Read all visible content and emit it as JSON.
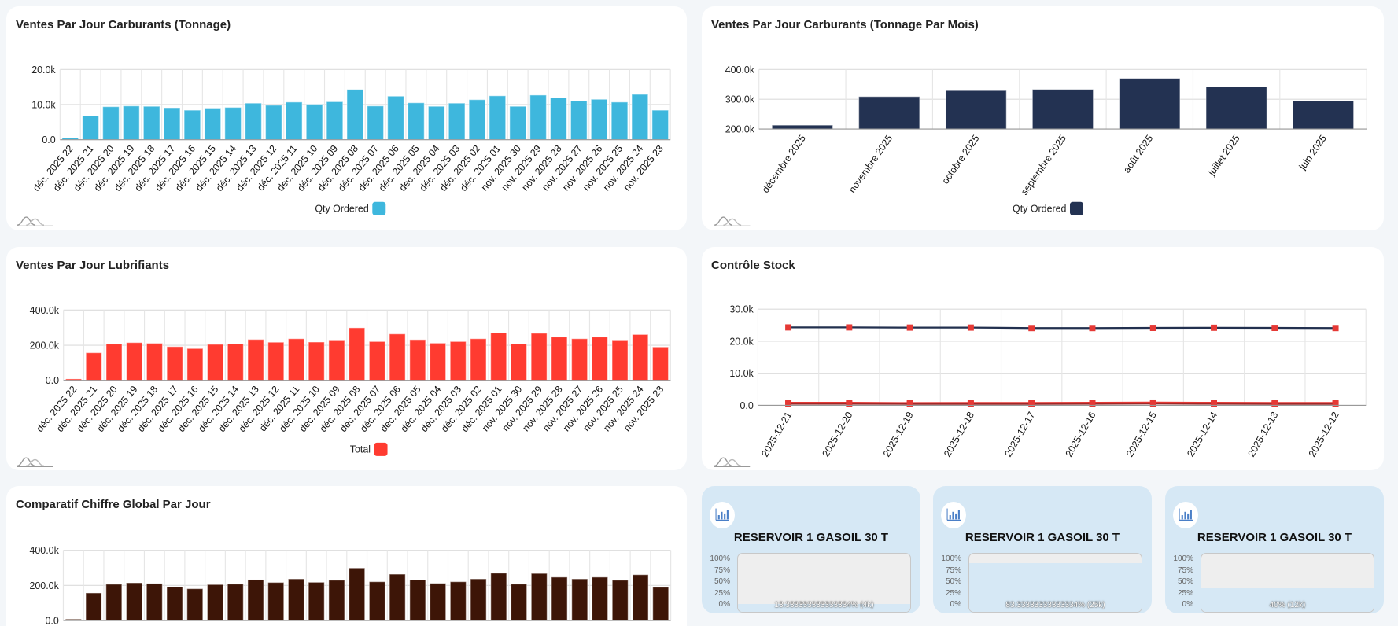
{
  "chart_data": [
    {
      "type": "bar",
      "title": "Ventes Par Jour Carburants (Tonnage)",
      "categories": [
        "déc. 2025 22",
        "déc. 2025 21",
        "déc. 2025 20",
        "déc. 2025 19",
        "déc. 2025 18",
        "déc. 2025 17",
        "déc. 2025 16",
        "déc. 2025 15",
        "déc. 2025 14",
        "déc. 2025 13",
        "déc. 2025 12",
        "déc. 2025 11",
        "déc. 2025 10",
        "déc. 2025 09",
        "déc. 2025 08",
        "déc. 2025 07",
        "déc. 2025 06",
        "déc. 2025 05",
        "déc. 2025 04",
        "déc. 2025 03",
        "déc. 2025 02",
        "déc. 2025 01",
        "nov. 2025 30",
        "nov. 2025 29",
        "nov. 2025 28",
        "nov. 2025 27",
        "nov. 2025 26",
        "nov. 2025 25",
        "nov. 2025 24",
        "nov. 2025 23"
      ],
      "series": [
        {
          "name": "Qty Ordered",
          "color": "#3eb7dd",
          "values": [
            500,
            6800,
            9400,
            9600,
            9500,
            9100,
            8400,
            9000,
            9200,
            10400,
            9800,
            10700,
            10100,
            10800,
            14300,
            9600,
            12400,
            10500,
            9500,
            10400,
            11400,
            12500,
            9500,
            12700,
            12000,
            11100,
            11500,
            10700,
            12900,
            8400
          ]
        }
      ],
      "ylim": [
        0,
        20000
      ],
      "yticks": [
        0,
        10000,
        20000
      ],
      "ytick_labels": [
        "0.0",
        "10.0k",
        "20.0k"
      ],
      "legend": "Qty Ordered",
      "grid": true
    },
    {
      "type": "bar",
      "title": "Ventes Par Jour Carburants (Tonnage Par Mois)",
      "categories": [
        "décembre 2025",
        "novembre 2025",
        "octobre 2025",
        "septembre 2025",
        "août 2025",
        "juillet 2025",
        "juin 2025"
      ],
      "series": [
        {
          "name": "Qty Ordered",
          "color": "#233252",
          "values": [
            213000,
            309000,
            329000,
            333000,
            370000,
            342000,
            295000
          ]
        }
      ],
      "ylim": [
        200000,
        400000
      ],
      "yticks": [
        200000,
        300000,
        400000
      ],
      "ytick_labels": [
        "200.0k",
        "300.0k",
        "400.0k"
      ],
      "legend": "Qty Ordered",
      "grid": true
    },
    {
      "type": "bar",
      "title": "Ventes Par Jour Lubrifiants",
      "categories": [
        "déc. 2025 22",
        "déc. 2025 21",
        "déc. 2025 20",
        "déc. 2025 19",
        "déc. 2025 18",
        "déc. 2025 17",
        "déc. 2025 16",
        "déc. 2025 15",
        "déc. 2025 14",
        "déc. 2025 13",
        "déc. 2025 12",
        "déc. 2025 11",
        "déc. 2025 10",
        "déc. 2025 09",
        "déc. 2025 08",
        "déc. 2025 07",
        "déc. 2025 06",
        "déc. 2025 05",
        "déc. 2025 04",
        "déc. 2025 03",
        "déc. 2025 02",
        "déc. 2025 01",
        "nov. 2025 30",
        "nov. 2025 29",
        "nov. 2025 28",
        "nov. 2025 27",
        "nov. 2025 26",
        "nov. 2025 25",
        "nov. 2025 24",
        "nov. 2025 23"
      ],
      "series": [
        {
          "name": "Total",
          "color": "#ff3b30",
          "values": [
            8000,
            157000,
            207000,
            215000,
            211000,
            192000,
            181000,
            205000,
            208000,
            233000,
            217000,
            237000,
            218000,
            230000,
            299000,
            221000,
            264000,
            232000,
            212000,
            221000,
            237000,
            270000,
            208000,
            268000,
            247000,
            237000,
            247000,
            230000,
            261000,
            190000
          ]
        }
      ],
      "ylim": [
        0,
        400000
      ],
      "yticks": [
        0,
        200000,
        400000
      ],
      "ytick_labels": [
        "0.0",
        "200.0k",
        "400.0k"
      ],
      "legend": "Total",
      "grid": true
    },
    {
      "type": "line",
      "title": "Contrôle Stock",
      "categories": [
        "2025-12-21",
        "2025-12-20",
        "2025-12-19",
        "2025-12-18",
        "2025-12-17",
        "2025-12-16",
        "2025-12-15",
        "2025-12-14",
        "2025-12-13",
        "2025-12-12"
      ],
      "series": [
        {
          "color": "#22304f",
          "marker_color": "#e53935",
          "values": [
            24300,
            24300,
            24250,
            24250,
            24100,
            24100,
            24150,
            24200,
            24150,
            24100
          ]
        },
        {
          "color": "#e53935",
          "marker_color": "#e53935",
          "values": [
            800,
            800,
            700,
            750,
            750,
            800,
            850,
            800,
            750,
            750
          ]
        },
        {
          "color": "#a02828",
          "marker_color": "#e53935",
          "values": [
            500,
            500,
            450,
            450,
            450,
            500,
            550,
            500,
            450,
            450
          ]
        }
      ],
      "ylim": [
        0,
        30000
      ],
      "yticks": [
        0,
        10000,
        20000,
        30000
      ],
      "ytick_labels": [
        "0.0",
        "10.0k",
        "20.0k",
        "30.0k"
      ],
      "grid": true
    },
    {
      "type": "bar",
      "title": "Comparatif Chiffre Global Par Jour",
      "series": [
        {
          "color": "#3d1507",
          "values": [
            8000,
            157000,
            207000,
            215000,
            211000,
            192000,
            181000,
            205000,
            208000,
            233000,
            217000,
            237000,
            218000,
            230000,
            299000,
            221000,
            264000,
            232000,
            212000,
            221000,
            237000,
            270000,
            208000,
            268000,
            247000,
            237000,
            247000,
            230000,
            261000,
            190000
          ]
        }
      ],
      "ylim": [
        0,
        400000
      ],
      "yticks": [
        0,
        200000,
        400000
      ],
      "ytick_labels": [
        "0.0",
        "200.0k",
        "400.0k"
      ],
      "grid": true
    }
  ],
  "gauges": [
    {
      "title": "RESERVOIR 1 GASOIL 30 T",
      "percent": 13.33,
      "label": "13.333333333333334% (4k)",
      "icon": "bar-chart-icon"
    },
    {
      "title": "RESERVOIR 1 GASOIL 30 T",
      "percent": 83.33,
      "label": "83.33333333333334% (25k)",
      "icon": "bar-chart-icon"
    },
    {
      "title": "RESERVOIR 1 GASOIL 30 T",
      "percent": 40,
      "label": "40% (12k)",
      "icon": "bar-chart-icon"
    }
  ],
  "gauge_axis": [
    "100%",
    "75%",
    "50%",
    "25%",
    "0%"
  ],
  "colors": {
    "background": "#f3f6f9",
    "gauge_card": "#d6e8f5"
  }
}
